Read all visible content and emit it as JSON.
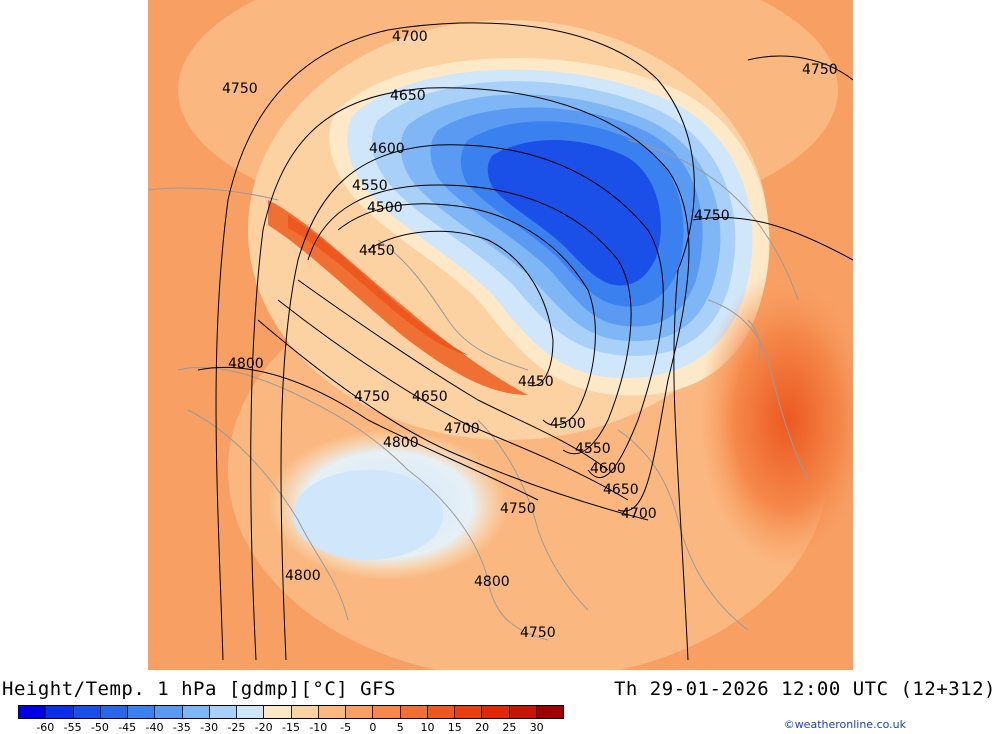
{
  "title": "Height/Temp. 1 hPa [gdmp][°C] GFS",
  "valid_time": "Th 29-01-2026 12:00 UTC (12+312)",
  "credit": "©weatheronline.co.uk",
  "colorbar": {
    "labels": [
      "-60",
      "-55",
      "-50",
      "-45",
      "-40",
      "-35",
      "-30",
      "-25",
      "-20",
      "-15",
      "-10",
      "-5",
      "0",
      "5",
      "10",
      "15",
      "20",
      "25",
      "30"
    ],
    "colors": [
      "#0000e6",
      "#0a2fe6",
      "#1a4fe8",
      "#2a66ea",
      "#3a80ee",
      "#5a9af2",
      "#7fb6f5",
      "#a8d0f8",
      "#cfe6fb",
      "#fde9c8",
      "#fcd2a2",
      "#fab880",
      "#f8a064",
      "#f5884a",
      "#f07034",
      "#ec5820",
      "#e84010",
      "#e02808",
      "#c81404",
      "#a00000"
    ]
  },
  "contours": [
    {
      "label": "4700"
    },
    {
      "label": "4750"
    },
    {
      "label": "4750"
    },
    {
      "label": "4650"
    },
    {
      "label": "4600"
    },
    {
      "label": "4550"
    },
    {
      "label": "4500"
    },
    {
      "label": "4450"
    },
    {
      "label": "4750"
    },
    {
      "label": "4800"
    },
    {
      "label": "4450"
    },
    {
      "label": "4750"
    },
    {
      "label": "4650"
    },
    {
      "label": "4500"
    },
    {
      "label": "4700"
    },
    {
      "label": "4800"
    },
    {
      "label": "4550"
    },
    {
      "label": "4600"
    },
    {
      "label": "4650"
    },
    {
      "label": "4750"
    },
    {
      "label": "4700"
    },
    {
      "label": "4800"
    },
    {
      "label": "4800"
    },
    {
      "label": "4750"
    }
  ]
}
